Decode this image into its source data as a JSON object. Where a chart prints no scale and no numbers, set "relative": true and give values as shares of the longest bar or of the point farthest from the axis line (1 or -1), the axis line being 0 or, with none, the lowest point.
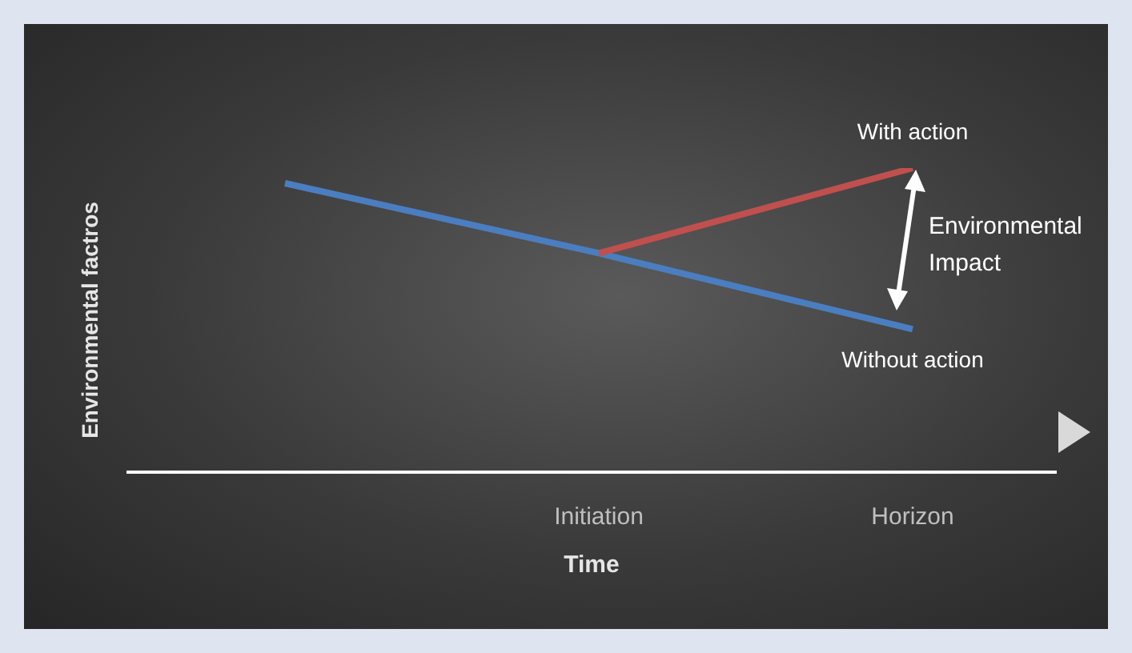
{
  "chart_data": {
    "type": "line",
    "relative": true,
    "categories": [
      null,
      "Initiation",
      "Horizon"
    ],
    "xlabel": "Time",
    "ylabel": "Environmental factros",
    "series": [
      {
        "name": "Without action",
        "color": "#4a7ec0",
        "values": [
          0.95,
          0.72,
          0.47
        ]
      },
      {
        "name": "With action",
        "color": "#c0504d",
        "values": [
          null,
          0.72,
          1
        ]
      }
    ],
    "annotations": [
      "Environmental Impact"
    ],
    "grid": false,
    "legend": false,
    "marker": "none"
  }
}
